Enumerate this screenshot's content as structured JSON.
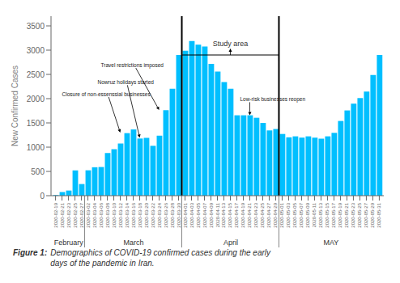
{
  "chart_data": {
    "type": "bar",
    "categories": [
      "2020-02-19",
      "2020-02-21",
      "2020-02-23",
      "2020-02-25",
      "2020-02-27",
      "2020-03-02",
      "2020-03-04",
      "2020-03-06",
      "2020-03-08",
      "2020-03-10",
      "2020-03-12",
      "2020-03-14",
      "2020-03-16",
      "2020-03-18",
      "2020-03-20",
      "2020-03-22",
      "2020-03-24",
      "2020-03-26",
      "2020-03-28",
      "2020-03-30",
      "2020-04-01",
      "2020-04-03",
      "2020-04-05",
      "2020-04-07",
      "2020-04-09",
      "2020-04-11",
      "2020-04-13",
      "2020-04-15",
      "2020-04-17",
      "2020-04-19",
      "2020-04-21",
      "2020-04-23",
      "2020-04-25",
      "2020-04-27",
      "2020-04-29",
      "2020-05-01",
      "2020-05-03",
      "2020-05-05",
      "2020-05-07",
      "2020-05-09",
      "2020-05-11",
      "2020-05-13",
      "2020-05-15",
      "2020-05-17",
      "2020-05-19",
      "2020-05-21",
      "2020-05-23",
      "2020-05-25",
      "2020-05-27",
      "2020-05-29",
      "2020-05-31"
    ],
    "values": [
      13,
      75,
      106,
      521,
      240,
      523,
      586,
      591,
      881,
      958,
      1075,
      1289,
      1365,
      1178,
      1192,
      1028,
      1237,
      1762,
      2206,
      2901,
      2987,
      3186,
      3111,
      3076,
      2715,
      2560,
      2343,
      2206,
      1657,
      1657,
      1657,
      1606,
      1499,
      1345,
      1374,
      1272,
      1203,
      1223,
      1197,
      1223,
      1196,
      1175,
      1223,
      1295,
      1540,
      1757,
      1897,
      2012,
      2146,
      2488,
      2900
    ],
    "color": "#00bfff",
    "y_label": "New Confirmed Cases",
    "ylim": [
      0,
      3700
    ],
    "yticks": [
      0,
      500,
      1000,
      1500,
      2000,
      2500,
      3000,
      3500
    ],
    "x_groups": [
      {
        "label": "February",
        "start": "2020-02-19",
        "end": "2020-02-27"
      },
      {
        "label": "March",
        "start": "2020-03-02",
        "end": "2020-03-30"
      },
      {
        "label": "April",
        "start": "2020-04-01",
        "end": "2020-04-29"
      },
      {
        "label": "MAY",
        "start": "2020-05-01",
        "end": "2020-05-31"
      }
    ],
    "annotations": [
      {
        "text": "Closure of non-essenssial businesses",
        "x": "2020-03-12",
        "y": 1300
      },
      {
        "text": "Nowruz holidays started",
        "x": "2020-03-18",
        "y": 1195
      },
      {
        "text": "Travel restrictions imposed",
        "x": "2020-03-24",
        "y": 1765
      },
      {
        "text": "Low-risk businesses reopen",
        "x": "2020-04-21",
        "y": 1660
      }
    ],
    "study_area": {
      "text": "Study area",
      "start": "2020-04-01",
      "end": "2020-04-29",
      "y": 2900
    },
    "caption_bold": "Figure 1:",
    "caption": "Demographics of COVID-19 confirmed cases during the early\ndays of the pandemic in Iran."
  }
}
